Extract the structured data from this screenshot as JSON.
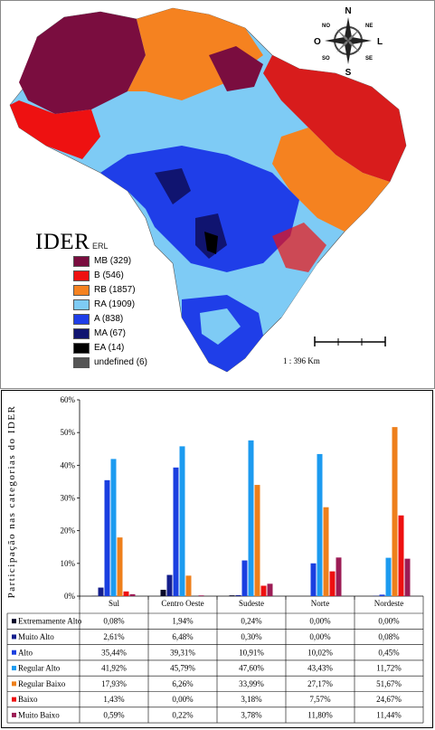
{
  "map": {
    "title": "IDER",
    "legend_head": "ERL",
    "legend": [
      {
        "label": "MB (329)",
        "color": "#7a0d3f"
      },
      {
        "label": "B (546)",
        "color": "#ee1111"
      },
      {
        "label": "RB (1857)",
        "color": "#f58220"
      },
      {
        "label": "RA (1909)",
        "color": "#7ecbf5"
      },
      {
        "label": "A (838)",
        "color": "#1f3ee8"
      },
      {
        "label": "MA (67)",
        "color": "#101470"
      },
      {
        "label": "EA (14)",
        "color": "#000000"
      },
      {
        "label": "undefined (6)",
        "color": "#555555"
      }
    ],
    "compass": {
      "n": "N",
      "ne": "NE",
      "no": "NO",
      "o": "O",
      "l": "L",
      "so": "SO",
      "se": "SE",
      "s": "S"
    },
    "scale_text": "1 : 396 Km"
  },
  "chart_data": {
    "type": "bar",
    "ylabel": "Participação nas categorias do IDER",
    "ylim": [
      0,
      60
    ],
    "yticks": [
      "0%",
      "10%",
      "20%",
      "30%",
      "40%",
      "50%",
      "60%"
    ],
    "categories": [
      "Sul",
      "Centro Oeste",
      "Sudeste",
      "Norte",
      "Nordeste"
    ],
    "series": [
      {
        "name": "Extremamente Alto",
        "color": "#0a0a2a",
        "values": [
          0.08,
          1.94,
          0.24,
          0.0,
          0.0
        ],
        "labels": [
          "0,08%",
          "1,94%",
          "0,24%",
          "0,00%",
          "0,00%"
        ]
      },
      {
        "name": "Muito Alto",
        "color": "#141e8c",
        "values": [
          2.61,
          6.48,
          0.3,
          0.0,
          0.08
        ],
        "labels": [
          "2,61%",
          "6,48%",
          "0,30%",
          "0,00%",
          "0,08%"
        ]
      },
      {
        "name": "Alto",
        "color": "#1a3fe0",
        "values": [
          35.44,
          39.31,
          10.91,
          10.02,
          0.45
        ],
        "labels": [
          "35,44%",
          "39,31%",
          "10,91%",
          "10,02%",
          "0,45%"
        ]
      },
      {
        "name": "Regular Alto",
        "color": "#1c9bf0",
        "values": [
          41.92,
          45.79,
          47.6,
          43.43,
          11.72
        ],
        "labels": [
          "41,92%",
          "45,79%",
          "47,60%",
          "43,43%",
          "11,72%"
        ]
      },
      {
        "name": "Regular Baixo",
        "color": "#ee7f1b",
        "values": [
          17.93,
          6.26,
          33.99,
          27.17,
          51.67
        ],
        "labels": [
          "17,93%",
          "6,26%",
          "33,99%",
          "27,17%",
          "51,67%"
        ]
      },
      {
        "name": "Baixo",
        "color": "#ee1010",
        "values": [
          1.43,
          0.0,
          3.18,
          7.57,
          24.67
        ],
        "labels": [
          "1,43%",
          "0,00%",
          "3,18%",
          "7,57%",
          "24,67%"
        ]
      },
      {
        "name": "Muito Baixo",
        "color": "#9c1c55",
        "values": [
          0.59,
          0.22,
          3.78,
          11.8,
          11.44
        ],
        "labels": [
          "0,59%",
          "0,22%",
          "3,78%",
          "11,80%",
          "11,44%"
        ]
      }
    ]
  }
}
